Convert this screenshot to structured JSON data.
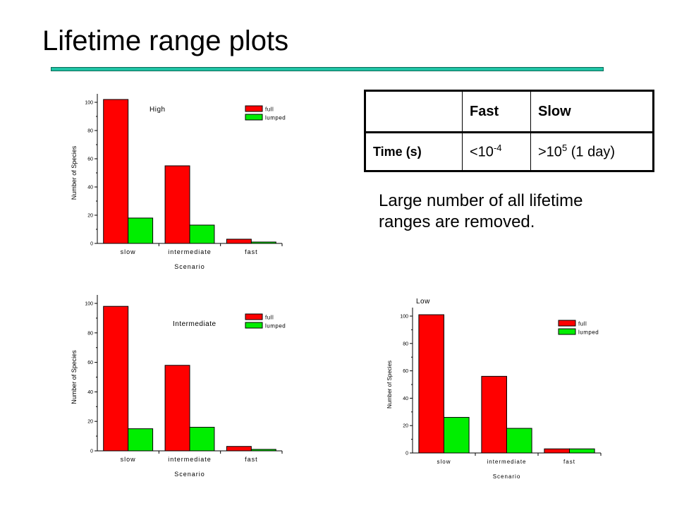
{
  "slide": {
    "title": "Lifetime range plots",
    "note": "Large number of all lifetime ranges are removed."
  },
  "table": {
    "headers": [
      "",
      "Fast",
      "Slow"
    ],
    "row_label": "Time (s)",
    "fast": {
      "base": "<10",
      "exp": "-4",
      "suffix": ""
    },
    "slow": {
      "base": ">10",
      "exp": "5",
      "suffix": " (1 day)"
    }
  },
  "colors": {
    "full": "#ff0000",
    "lumped": "#00ee00",
    "rule": "#1fc4a5"
  },
  "chart_data": [
    {
      "type": "bar",
      "title": "High",
      "xlabel": "Scenario",
      "ylabel": "Number of Species",
      "categories": [
        "slow",
        "intermediate",
        "fast"
      ],
      "ylim": [
        0,
        100
      ],
      "yticks": [
        "0",
        "20",
        "40",
        "60",
        "80",
        "100"
      ],
      "legend": "top-right",
      "series": [
        {
          "name": "full",
          "values": [
            102,
            55,
            3
          ]
        },
        {
          "name": "lumped",
          "values": [
            18,
            13,
            1
          ]
        }
      ]
    },
    {
      "type": "bar",
      "title": "Intermediate",
      "xlabel": "Scenario",
      "ylabel": "Number of Species",
      "categories": [
        "slow",
        "intermediate",
        "fast"
      ],
      "ylim": [
        0,
        100
      ],
      "yticks": [
        "0",
        "20",
        "40",
        "60",
        "80",
        "100"
      ],
      "legend": "top-right",
      "series": [
        {
          "name": "full",
          "values": [
            98,
            58,
            3
          ]
        },
        {
          "name": "lumped",
          "values": [
            15,
            16,
            1
          ]
        }
      ]
    },
    {
      "type": "bar",
      "title": "Low",
      "xlabel": "Scenario",
      "ylabel": "Number of Species",
      "categories": [
        "slow",
        "intermediate",
        "fast"
      ],
      "ylim": [
        0,
        100
      ],
      "yticks": [
        "0",
        "20",
        "40",
        "60",
        "80",
        "100"
      ],
      "legend": "top-right",
      "series": [
        {
          "name": "full",
          "values": [
            101,
            56,
            3
          ]
        },
        {
          "name": "lumped",
          "values": [
            26,
            18,
            3
          ]
        }
      ]
    }
  ]
}
